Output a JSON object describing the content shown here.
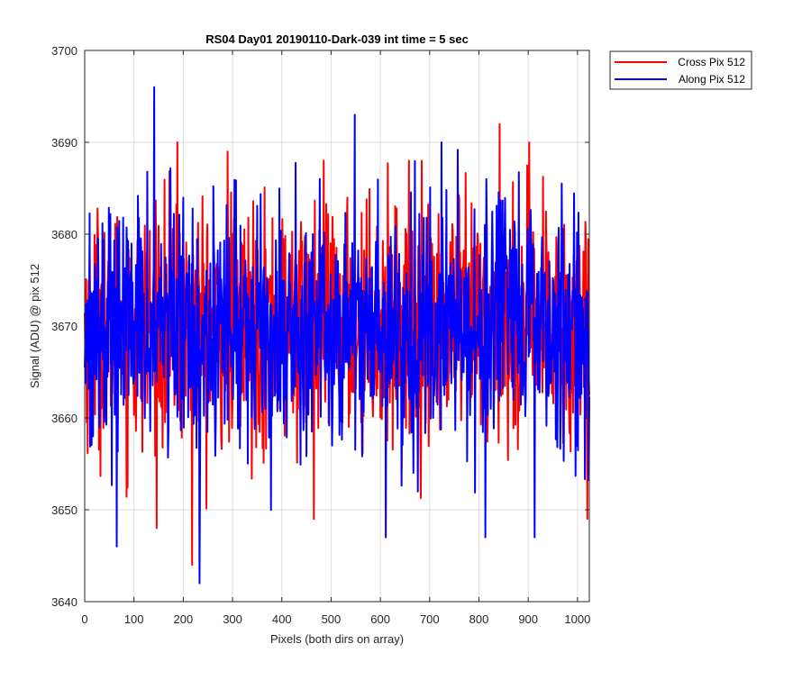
{
  "chart_data": {
    "type": "line",
    "title": "RS04 Day01 20190110-Dark-039 int time = 5 sec",
    "xlabel": "Pixels (both dirs on array)",
    "ylabel": "Signal (ADU) @ pix 512",
    "xlim": [
      0,
      1024
    ],
    "ylim": [
      3640,
      3700
    ],
    "xticks": [
      0,
      100,
      200,
      300,
      400,
      500,
      600,
      700,
      800,
      900,
      1000
    ],
    "yticks": [
      3640,
      3650,
      3660,
      3670,
      3680,
      3690,
      3700
    ],
    "grid": true,
    "legend_position": "outside-top-right",
    "series": [
      {
        "name": "Cross Pix 512",
        "color": "#ff0000",
        "mean": 3670,
        "observed_min": 3644,
        "observed_max": 3692,
        "peaks": [
          [
            188,
            3690
          ],
          [
            218,
            3644
          ],
          [
            290,
            3689
          ],
          [
            465,
            3649
          ],
          [
            842,
            3692
          ],
          [
            902,
            3690
          ],
          [
            1020,
            3649
          ]
        ]
      },
      {
        "name": "Along Pix 512",
        "color": "#0000ff",
        "mean": 3670,
        "observed_min": 3642,
        "observed_max": 3696,
        "peaks": [
          [
            141,
            3696
          ],
          [
            65,
            3646
          ],
          [
            233,
            3642
          ],
          [
            548,
            3693
          ],
          [
            611,
            3647
          ],
          [
            724,
            3690
          ],
          [
            813,
            3647
          ],
          [
            913,
            3647
          ]
        ]
      }
    ]
  }
}
